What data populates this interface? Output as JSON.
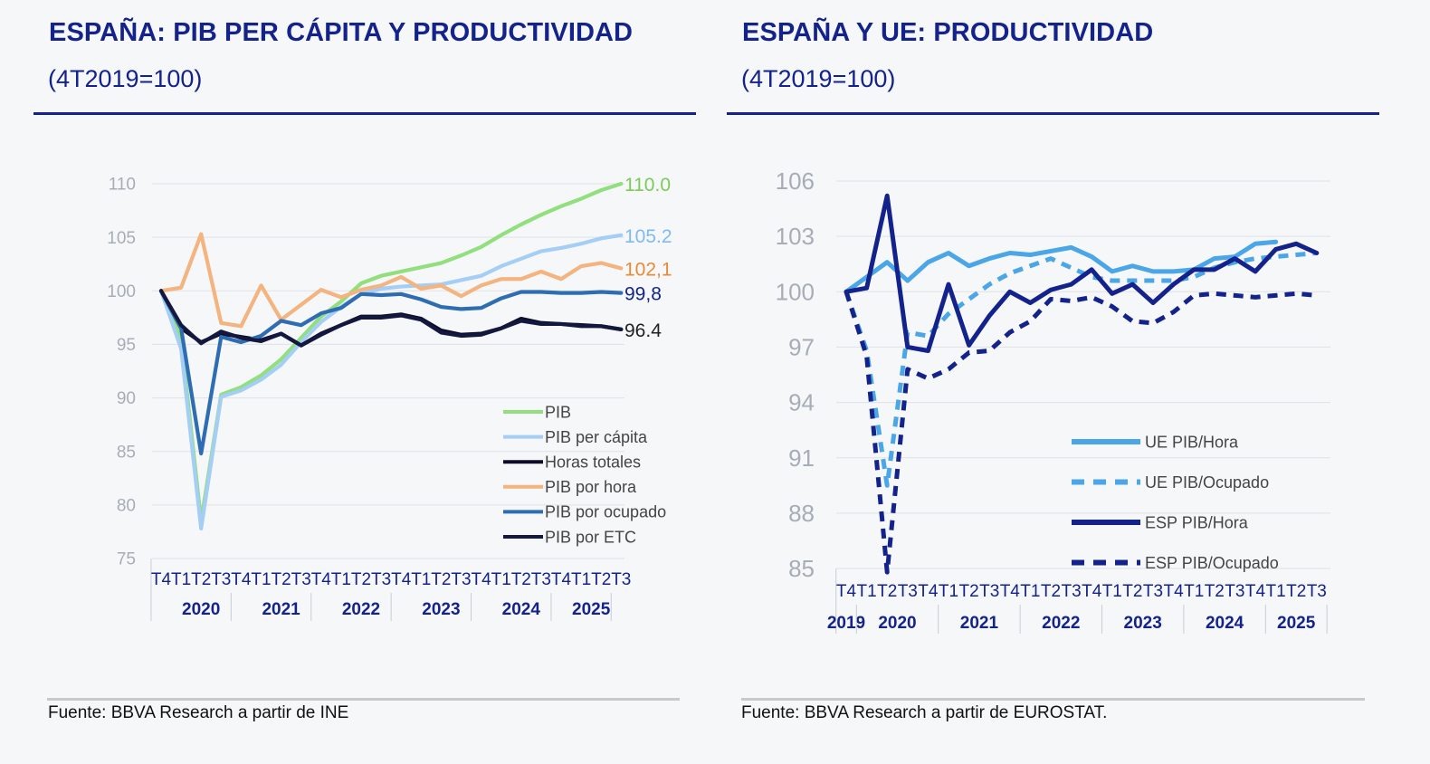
{
  "left": {
    "title": "ESPAÑA: PIB PER CÁPITA Y PRODUCTIVIDAD",
    "subtitle": "(4T2019=100)",
    "source": "Fuente: BBVA Research a partir de INE"
  },
  "right": {
    "title": "ESPAÑA Y UE: PRODUCTIVIDAD",
    "subtitle": "(4T2019=100)",
    "source": "Fuente: BBVA Research a partir de EUROSTAT."
  },
  "chart_data": [
    {
      "type": "line",
      "ylim": [
        75,
        110
      ],
      "yticks": [
        75,
        80,
        85,
        90,
        95,
        100,
        105,
        110
      ],
      "ytick_color": "#a7adb7",
      "gridlines": true,
      "legend_position": "bottom-right",
      "x_quarters": [
        "T4",
        "T1",
        "T2",
        "T3",
        "T4",
        "T1",
        "T2",
        "T3",
        "T4",
        "T1",
        "T2",
        "T3",
        "T4",
        "T1",
        "T2",
        "T3",
        "T4",
        "T1",
        "T2",
        "T3",
        "T4",
        "T1",
        "T2",
        "T3"
      ],
      "x_years": [
        {
          "label": "2020",
          "start": 1,
          "end": 4
        },
        {
          "label": "2021",
          "start": 5,
          "end": 8
        },
        {
          "label": "2022",
          "start": 9,
          "end": 12
        },
        {
          "label": "2023",
          "start": 13,
          "end": 16
        },
        {
          "label": "2024",
          "start": 17,
          "end": 20
        },
        {
          "label": "2025",
          "start": 21,
          "end": 23
        }
      ],
      "series": [
        {
          "name": "PIB",
          "color": "#92df7e",
          "dash": false,
          "values": [
            100,
            95.5,
            78.5,
            90.3,
            91,
            92.1,
            93.6,
            95.6,
            97.6,
            99,
            100.7,
            101.4,
            101.8,
            102.2,
            102.6,
            103.3,
            104.1,
            105.2,
            106.2,
            107.1,
            107.9,
            108.6,
            109.4,
            110.0
          ],
          "end_label": "110.0",
          "end_label_color": "#79cc55"
        },
        {
          "name": "PIB per cápita",
          "color": "#a4cef5",
          "dash": false,
          "values": [
            100,
            94.6,
            77.8,
            90.1,
            90.7,
            91.7,
            93.1,
            95.2,
            97.1,
            98.5,
            99.7,
            100.2,
            100.4,
            100.5,
            100.6,
            101.0,
            101.4,
            102.3,
            103.0,
            103.7,
            104.0,
            104.4,
            104.9,
            105.2
          ],
          "end_label": "105.2",
          "end_label_color": "#7fbaf0"
        },
        {
          "name": "Horas totales",
          "color": "#0d0d2a",
          "dash": false,
          "values": [
            100,
            96.5,
            95.2,
            96,
            95.7,
            95.4,
            96,
            94.9,
            96,
            96.8,
            97.6,
            97.6,
            97.8,
            97.4,
            96.3,
            95.9,
            96,
            96.5,
            97.4,
            97,
            96.9,
            96.8,
            96.7,
            96.4
          ],
          "end_label": "96.4",
          "end_label_color": "#222222"
        },
        {
          "name": "PIB por hora",
          "color": "#f3b47f",
          "dash": false,
          "values": [
            100,
            100.3,
            105.3,
            97,
            96.7,
            100.5,
            97.3,
            98.7,
            100.1,
            99.4,
            100.1,
            100.5,
            101.3,
            100.2,
            100.5,
            99.5,
            100.5,
            101.1,
            101.1,
            101.8,
            101.1,
            102.3,
            102.6,
            102.1
          ],
          "end_label": "102,1",
          "end_label_color": "#e98a36"
        },
        {
          "name": "PIB por ocupado",
          "color": "#2f6db3",
          "dash": false,
          "values": [
            100,
            96.5,
            84.8,
            95.7,
            95.2,
            95.8,
            97.2,
            96.8,
            97.9,
            98.4,
            99.7,
            99.6,
            99.7,
            99.2,
            98.5,
            98.3,
            98.4,
            99.3,
            99.9,
            99.9,
            99.8,
            99.8,
            99.9,
            99.8
          ],
          "end_label": "99,8",
          "end_label_color": "#14228c"
        },
        {
          "name": "PIB por ETC",
          "color": "#14183f",
          "dash": false,
          "values": [
            100,
            96.8,
            95.1,
            96.2,
            95.6,
            95.3,
            96,
            94.9,
            95.9,
            96.8,
            97.5,
            97.5,
            97.7,
            97.3,
            96.1,
            95.8,
            95.9,
            96.5,
            97.2,
            96.9,
            96.9,
            96.7,
            96.7,
            96.4
          ]
        }
      ]
    },
    {
      "type": "line",
      "ylim": [
        85,
        106
      ],
      "yticks": [
        85,
        88,
        91,
        94,
        97,
        100,
        103,
        106
      ],
      "ytick_color": "#a7adb7",
      "gridlines": true,
      "legend_position": "bottom-right",
      "x_quarters": [
        "T4",
        "T1",
        "T2",
        "T3",
        "T4",
        "T1",
        "T2",
        "T3",
        "T4",
        "T1",
        "T2",
        "T3",
        "T4",
        "T1",
        "T2",
        "T3",
        "T4",
        "T1",
        "T2",
        "T3",
        "T4",
        "T1",
        "T2",
        "T3"
      ],
      "x_years": [
        {
          "label": "2019",
          "start": 0,
          "end": 1
        },
        {
          "label": "2020",
          "start": 1,
          "end": 5
        },
        {
          "label": "2021",
          "start": 5,
          "end": 9
        },
        {
          "label": "2022",
          "start": 9,
          "end": 13
        },
        {
          "label": "2023",
          "start": 13,
          "end": 17
        },
        {
          "label": "2024",
          "start": 17,
          "end": 21
        },
        {
          "label": "2025",
          "start": 21,
          "end": 24
        }
      ],
      "series": [
        {
          "name": "UE PIB/Hora",
          "color": "#4aa6e6",
          "dash": false,
          "values": [
            100,
            100.8,
            101.6,
            100.6,
            101.6,
            102.1,
            101.4,
            101.8,
            102.1,
            102.0,
            102.2,
            102.4,
            101.9,
            101.1,
            101.4,
            101.1,
            101.1,
            101.2,
            101.8,
            101.9,
            102.6,
            102.7,
            null,
            null
          ]
        },
        {
          "name": "UE PIB/Ocupado",
          "color": "#4aa6e6",
          "dash": true,
          "values": [
            100,
            96.8,
            89.5,
            97.8,
            97.6,
            98.8,
            99.6,
            100.4,
            101.0,
            101.4,
            101.8,
            101.3,
            100.8,
            100.6,
            100.6,
            100.6,
            100.6,
            100.8,
            101.3,
            101.6,
            101.8,
            101.9,
            102.0,
            102.1
          ]
        },
        {
          "name": "ESP PIB/Hora",
          "color": "#14228c",
          "dash": false,
          "values": [
            100,
            100.2,
            105.2,
            97,
            96.8,
            100.4,
            97.1,
            98.7,
            100.0,
            99.4,
            100.1,
            100.4,
            101.2,
            99.9,
            100.4,
            99.4,
            100.4,
            101.2,
            101.2,
            101.8,
            101.1,
            102.3,
            102.6,
            102.1
          ]
        },
        {
          "name": "ESP PIB/Ocupado",
          "color": "#14228c",
          "dash": true,
          "values": [
            100,
            96.5,
            84.8,
            95.8,
            95.3,
            95.8,
            96.7,
            96.8,
            97.8,
            98.4,
            99.6,
            99.5,
            99.7,
            99.2,
            98.4,
            98.3,
            98.9,
            99.8,
            99.9,
            99.8,
            99.7,
            99.8,
            99.9,
            99.8
          ]
        }
      ]
    }
  ]
}
